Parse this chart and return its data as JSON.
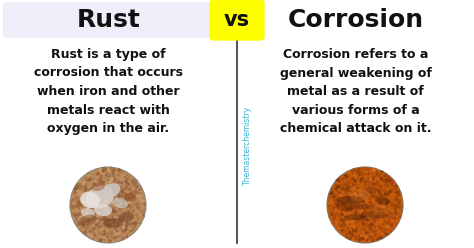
{
  "background_color": "#ffffff",
  "left_title": "Rust",
  "right_title": "Corrosion",
  "vs_text": "vs",
  "vs_bg_color": "#ffff00",
  "left_body": "Rust is a type of\ncorrosion that occurs\nwhen iron and other\nmetals react with\noxygen in the air.",
  "right_body": "Corrosion refers to a\ngeneral weakening of\nmetal as a result of\nvarious forms of a\nchemical attack on it.",
  "watermark": "Themasterchemistry",
  "divider_color": "#333333",
  "text_color": "#111111",
  "title_fontsize": 18,
  "body_fontsize": 9,
  "vs_fontsize": 15,
  "watermark_fontsize": 5.5,
  "left_title_bg": "#eeeef8",
  "right_title_bg": "#ffffff"
}
